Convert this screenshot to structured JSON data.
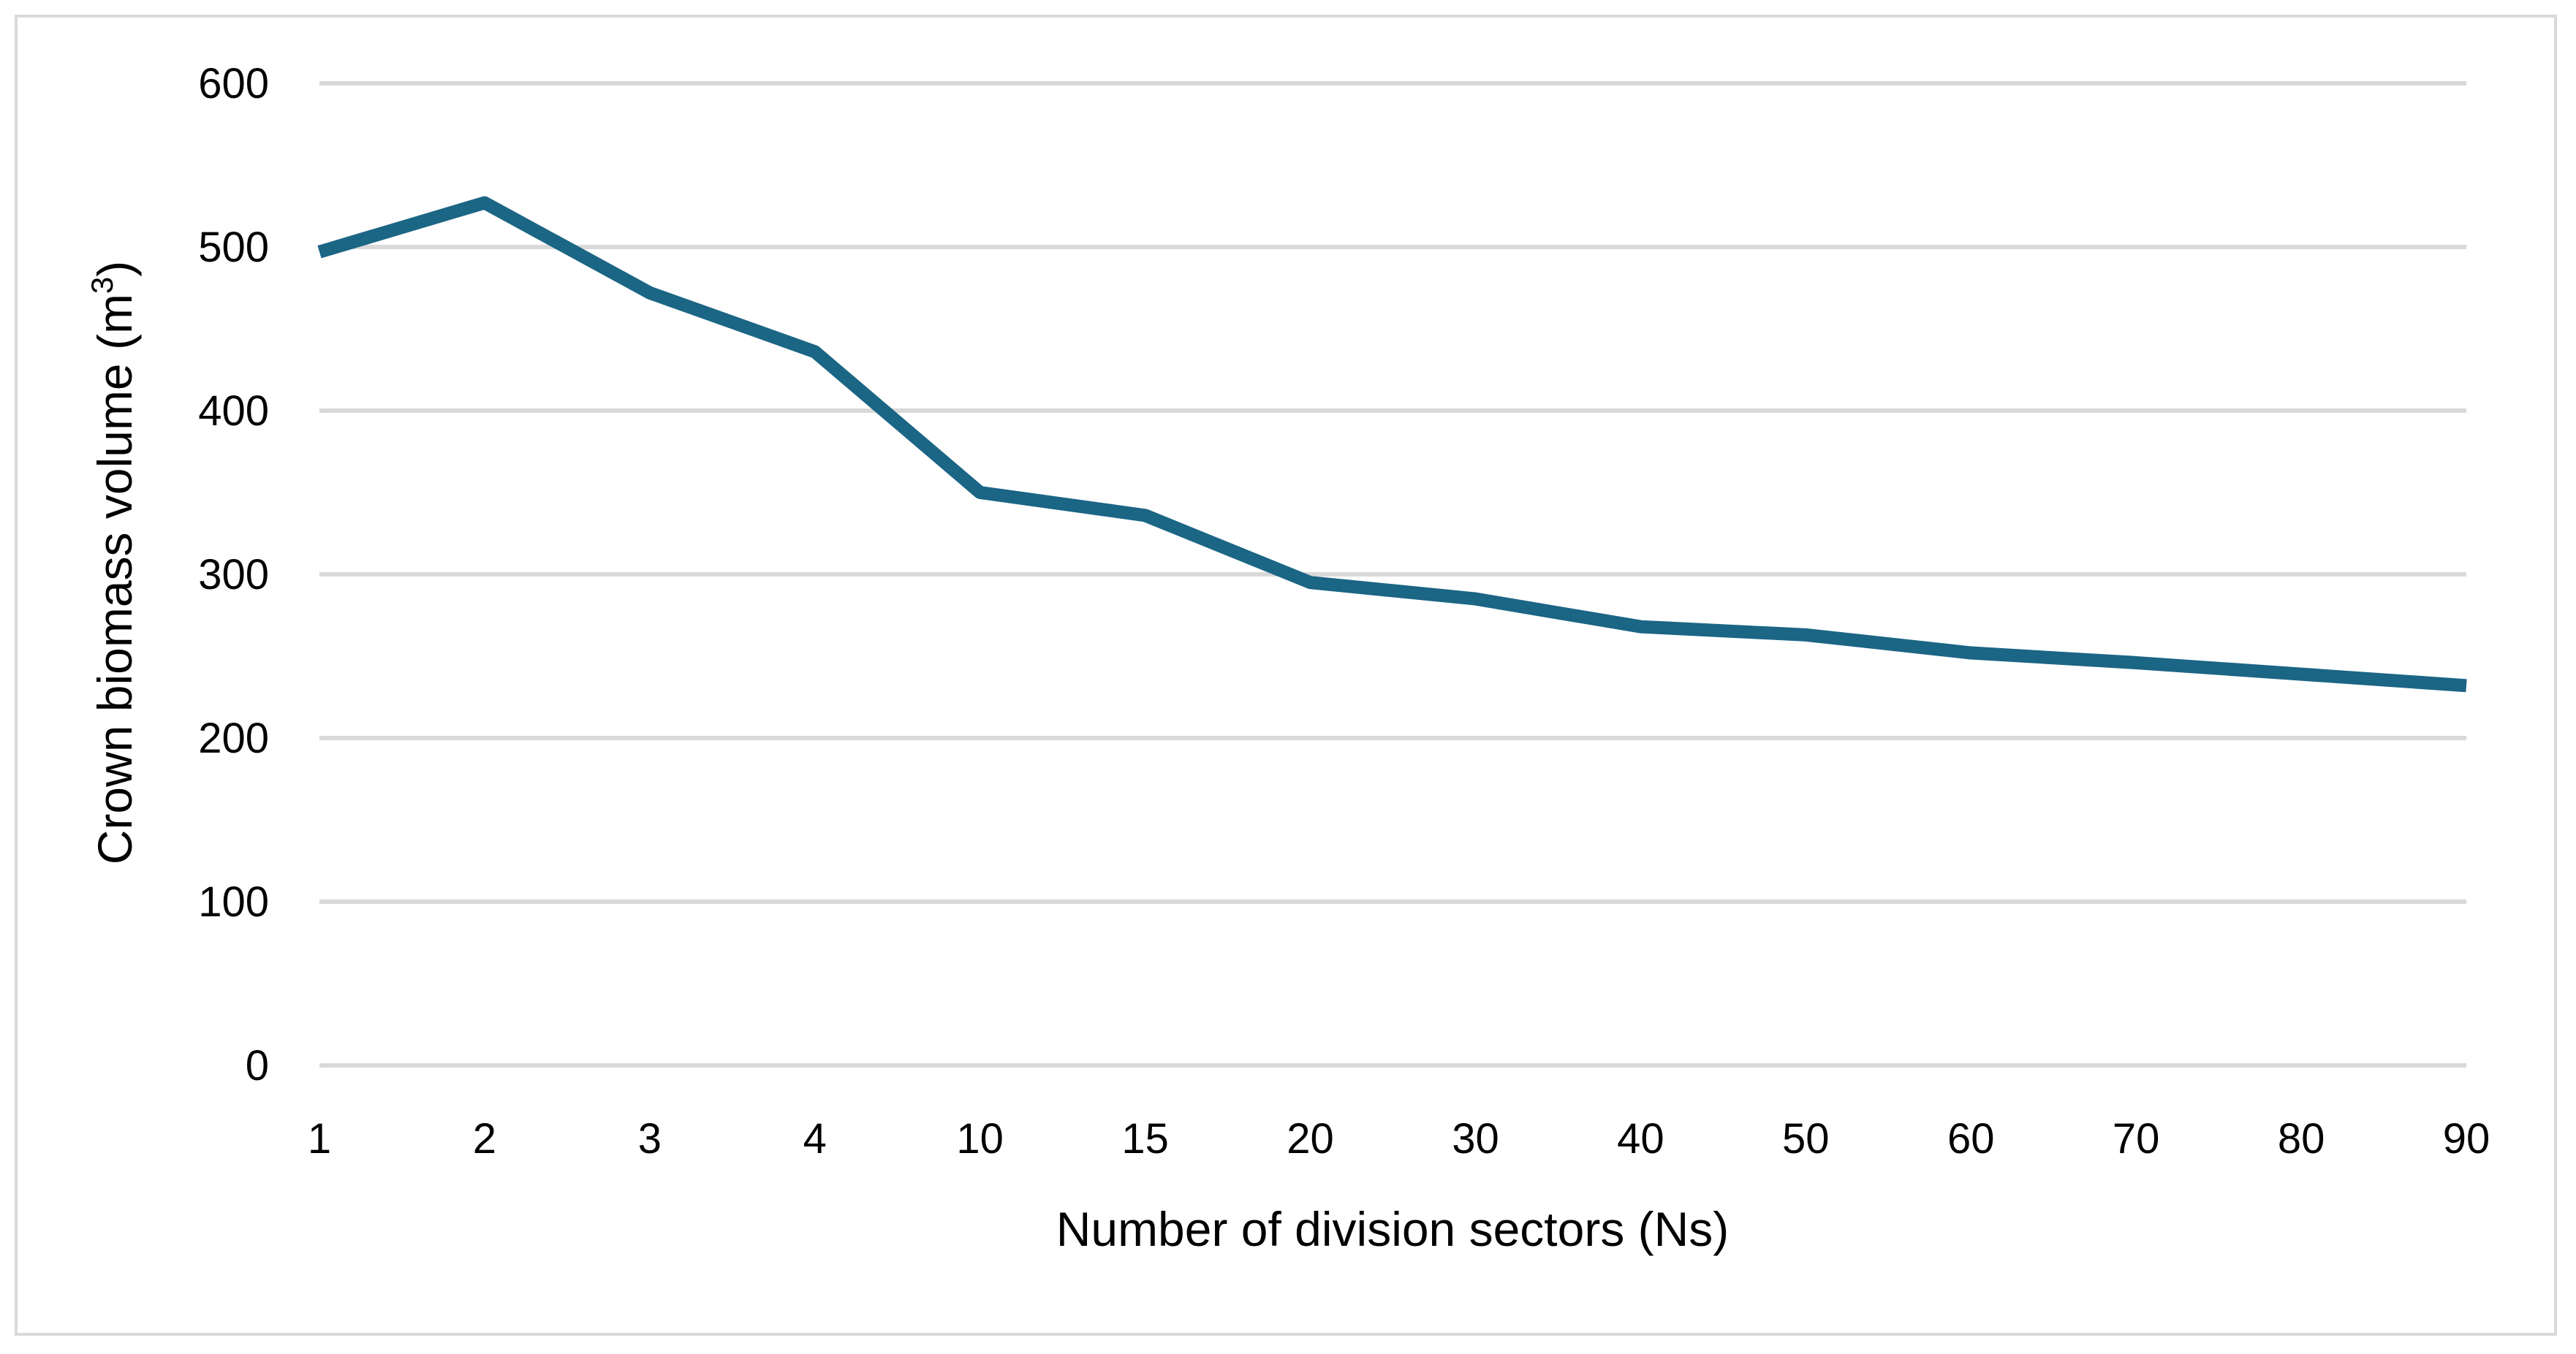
{
  "chart_data": {
    "type": "line",
    "title": "",
    "xlabel": "Number of division sectors (Ns)",
    "ylabel": "Crown biomass volume (m",
    "ylabel_superscript": "3",
    "ylabel_suffix": ")",
    "categories": [
      "1",
      "2",
      "3",
      "4",
      "10",
      "15",
      "20",
      "30",
      "40",
      "50",
      "60",
      "70",
      "80",
      "90"
    ],
    "series": [
      {
        "values": [
          497,
          527,
          472,
          436,
          350,
          336,
          295,
          285,
          268,
          263,
          252,
          246,
          239,
          232
        ]
      }
    ],
    "ylim": [
      0,
      600
    ],
    "yticks": [
      0,
      100,
      200,
      300,
      400,
      500,
      600
    ],
    "grid": true,
    "legend": "none",
    "colors": {
      "line": "#1b6585",
      "grid": "#d9d9d9",
      "frame": "#d9d9d9"
    }
  }
}
